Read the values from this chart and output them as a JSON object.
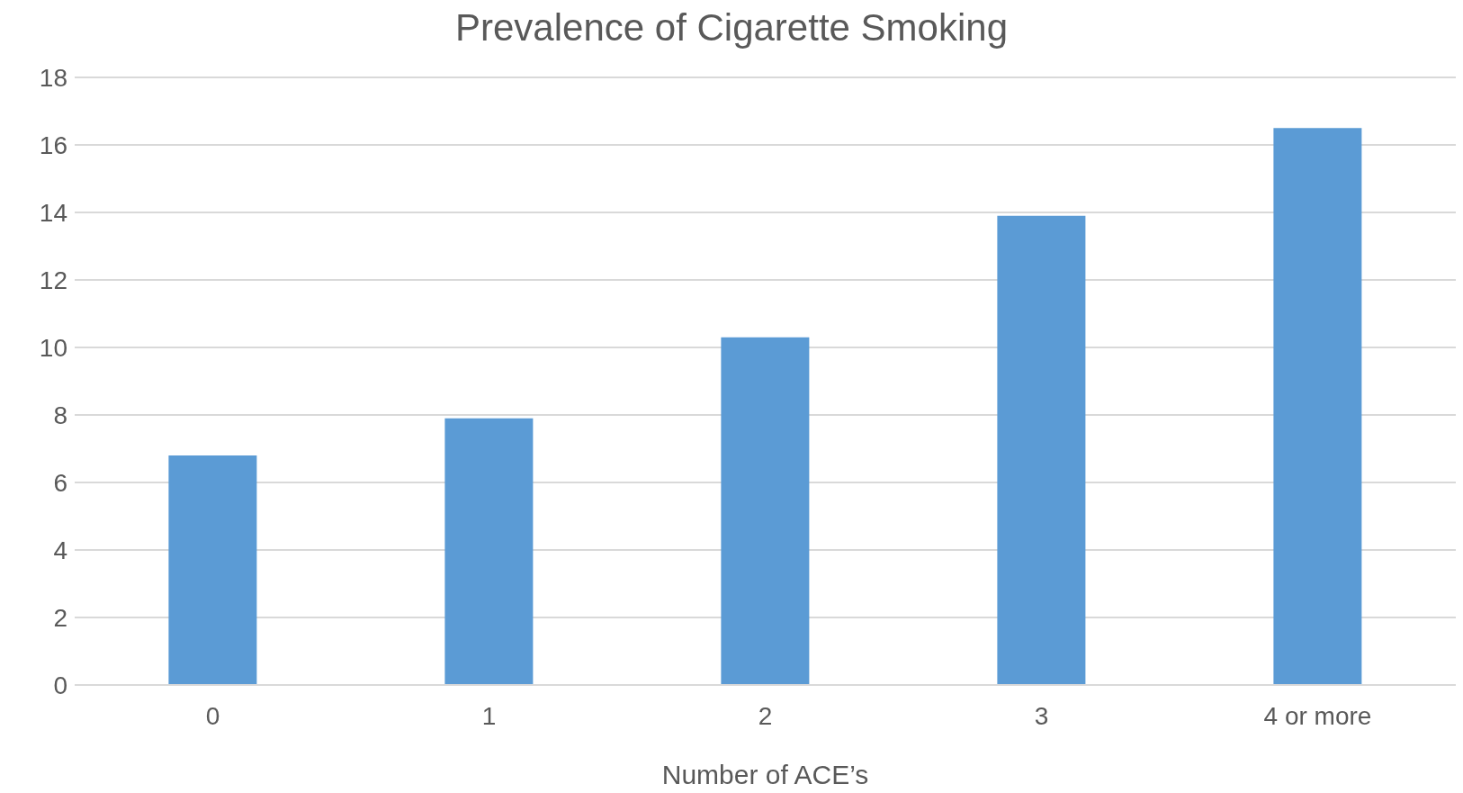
{
  "chart_data": {
    "type": "bar",
    "title": "Prevalence of Cigarette Smoking",
    "xlabel": "Number of ACE’s",
    "categories": [
      "0",
      "1",
      "2",
      "3",
      "4 or more"
    ],
    "values": [
      6.8,
      7.9,
      10.3,
      13.9,
      16.5
    ],
    "color": "#5b9bd5",
    "ylim": [
      0,
      18
    ],
    "yticks": [
      0,
      2,
      4,
      6,
      8,
      10,
      12,
      14,
      16,
      18
    ],
    "grid": "y"
  }
}
